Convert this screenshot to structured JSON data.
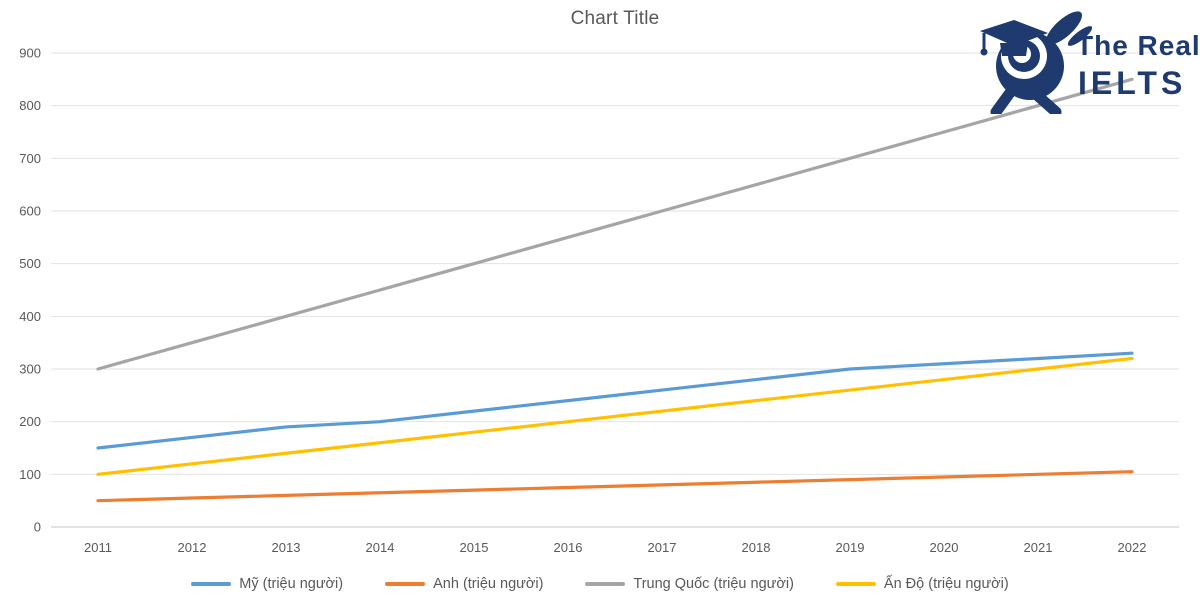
{
  "logo": {
    "line1": "The Real",
    "line2": "IELTS",
    "color": "#1E3A6E",
    "icon": "rabbit-graduate-mascot"
  },
  "chart_data": {
    "type": "line",
    "title": "Chart Title",
    "categories": [
      "2011",
      "2012",
      "2013",
      "2014",
      "2015",
      "2016",
      "2017",
      "2018",
      "2019",
      "2020",
      "2021",
      "2022"
    ],
    "yticks": [
      0,
      100,
      200,
      300,
      400,
      500,
      600,
      700,
      800,
      900
    ],
    "ylim": [
      0,
      900
    ],
    "grid": true,
    "legend_position": "bottom",
    "gridline_color": "#E2E2E2",
    "axis_color": "#C6C6C6",
    "label_color": "#595959",
    "xlabel": "",
    "ylabel": "",
    "series": [
      {
        "name": "Mỹ  (triệu người)",
        "color": "#5B9BD5",
        "values": [
          150,
          170,
          190,
          200,
          220,
          240,
          260,
          280,
          300,
          310,
          320,
          330
        ]
      },
      {
        "name": "Anh  (triệu người)",
        "color": "#ED7D31",
        "values": [
          50,
          55,
          60,
          65,
          70,
          75,
          80,
          85,
          90,
          95,
          100,
          105
        ]
      },
      {
        "name": "Trung Quốc (triệu người)",
        "color": "#A5A5A5",
        "values": [
          300,
          350,
          400,
          450,
          500,
          550,
          600,
          650,
          700,
          750,
          800,
          850
        ]
      },
      {
        "name": "Ấn Độ (triệu người)",
        "color": "#FFC000",
        "values": [
          100,
          120,
          140,
          160,
          180,
          200,
          220,
          240,
          260,
          280,
          300,
          320
        ]
      }
    ]
  }
}
